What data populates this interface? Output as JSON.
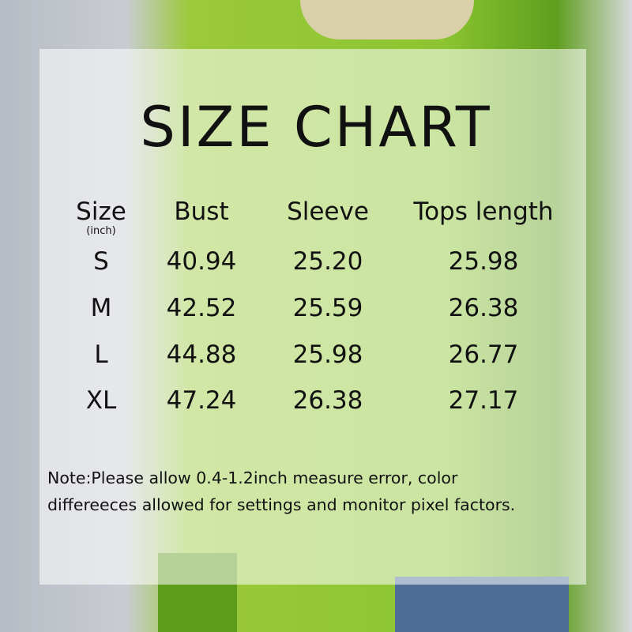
{
  "title": "SIZE CHART",
  "table": {
    "headers": [
      "Size",
      "Bust",
      "Sleeve",
      "Tops length"
    ],
    "unit": "(inch)",
    "rows": [
      [
        "S",
        "40.94",
        "25.20",
        "25.98"
      ],
      [
        "M",
        "42.52",
        "25.59",
        "26.38"
      ],
      [
        "L",
        "44.88",
        "25.98",
        "26.77"
      ],
      [
        "XL",
        "47.24",
        "26.38",
        "27.17"
      ]
    ]
  },
  "note_lines": [
    "Note:Please allow 0.4-1.2inch measure error, color",
    "differeeces allowed for settings and monitor pixel factors."
  ],
  "colors": {
    "sweater": "#8cc531",
    "panel": "#ffffff"
  }
}
